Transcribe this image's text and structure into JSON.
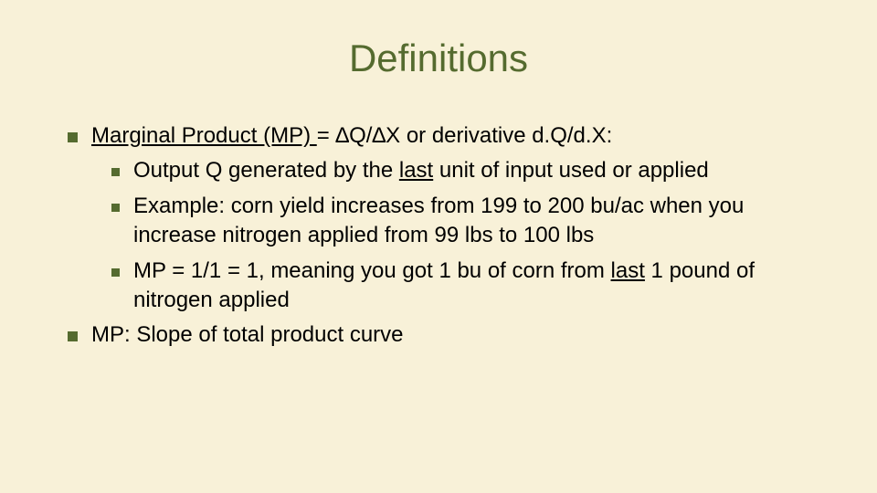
{
  "colors": {
    "background": "#f8f1d8",
    "title": "#556b2f",
    "bullet": "#556b2f",
    "text": "#000000"
  },
  "typography": {
    "title_fontsize": 42,
    "body_fontsize": 24,
    "font_family": "Tahoma, Verdana, Arial, sans-serif"
  },
  "title": "Definitions",
  "b1": {
    "s1": "Marginal Product (MP) ",
    "s2": "= ∆Q/∆X or derivative d.Q/d.X:"
  },
  "b1a": {
    "s1": "Output Q generated by the ",
    "s2": "last",
    "s3": " unit of input used or applied"
  },
  "b1b": {
    "s1": "Example: corn yield increases from 199 to 200 bu/ac when you increase nitrogen applied  from 99 lbs to 100 lbs"
  },
  "b1c": {
    "s1": "MP = 1/1 = 1, meaning you got 1 bu of corn from ",
    "s2": "last",
    "s3": " 1 pound of nitrogen applied"
  },
  "b2": {
    "s1": "MP: Slope of total product curve"
  }
}
